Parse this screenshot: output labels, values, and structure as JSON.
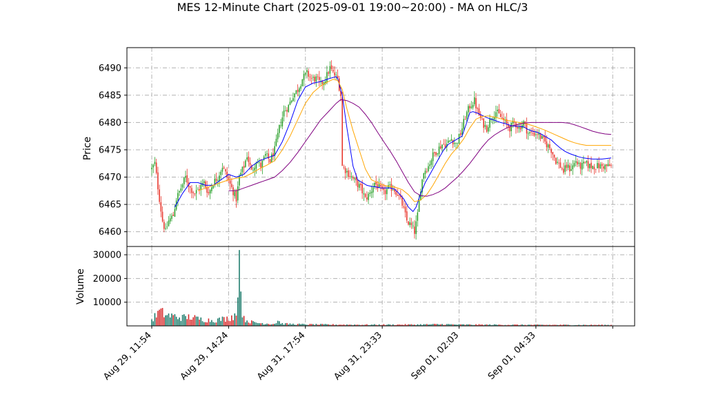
{
  "chart_data": {
    "type": "candlestick",
    "title": "MES 12-Minute Chart (2025-09-01 19:00~20:00) - MA on HLC/3",
    "price_panel": {
      "ylabel": "Price",
      "ylim": [
        6457.3,
        6493.7
      ],
      "yticks": [
        6460,
        6465,
        6470,
        6475,
        6480,
        6485,
        6490
      ],
      "grid": true
    },
    "volume_panel": {
      "ylabel": "Volume",
      "ylim": [
        0,
        33500
      ],
      "yticks": [
        10000,
        20000,
        30000
      ],
      "grid": true
    },
    "xticks": [
      "Aug 29, 11:54",
      "Aug 29, 14:24",
      "Aug 31, 17:54",
      "Aug 31, 23:33",
      "Sep 01, 02:03",
      "Sep 01, 04:33"
    ],
    "bar_count": 300,
    "price_path": [
      [
        0,
        6471.5
      ],
      [
        2,
        6472.5
      ],
      [
        5,
        6466
      ],
      [
        7,
        6462
      ],
      [
        9,
        6460
      ],
      [
        11,
        6462
      ],
      [
        14,
        6463
      ],
      [
        16,
        6466
      ],
      [
        19,
        6468
      ],
      [
        22,
        6470
      ],
      [
        25,
        6468
      ],
      [
        28,
        6467
      ],
      [
        31,
        6468
      ],
      [
        34,
        6469
      ],
      [
        37,
        6467
      ],
      [
        40,
        6469
      ],
      [
        43,
        6470
      ],
      [
        46,
        6472
      ],
      [
        49,
        6470
      ],
      [
        52,
        6468
      ],
      [
        55,
        6466
      ],
      [
        57,
        6470
      ],
      [
        60,
        6472
      ],
      [
        62,
        6474
      ],
      [
        65,
        6471
      ],
      [
        68,
        6473
      ],
      [
        71,
        6472
      ],
      [
        74,
        6474
      ],
      [
        77,
        6473
      ],
      [
        80,
        6475
      ],
      [
        83,
        6479
      ],
      [
        86,
        6482
      ],
      [
        89,
        6483
      ],
      [
        92,
        6485
      ],
      [
        95,
        6486
      ],
      [
        98,
        6488
      ],
      [
        101,
        6489
      ],
      [
        104,
        6488
      ],
      [
        107,
        6488
      ],
      [
        110,
        6487
      ],
      [
        113,
        6488
      ],
      [
        116,
        6490
      ],
      [
        118,
        6489
      ],
      [
        121,
        6488
      ],
      [
        123,
        6485
      ],
      [
        124,
        6472
      ],
      [
        127,
        6471
      ],
      [
        130,
        6470
      ],
      [
        133,
        6469
      ],
      [
        136,
        6468
      ],
      [
        139,
        6466
      ],
      [
        142,
        6467
      ],
      [
        145,
        6469
      ],
      [
        148,
        6468
      ],
      [
        151,
        6467
      ],
      [
        154,
        6468
      ],
      [
        157,
        6468
      ],
      [
        160,
        6467
      ],
      [
        163,
        6465
      ],
      [
        166,
        6462
      ],
      [
        169,
        6461
      ],
      [
        171,
        6460
      ],
      [
        173,
        6463
      ],
      [
        175,
        6468
      ],
      [
        177,
        6471
      ],
      [
        180,
        6472
      ],
      [
        183,
        6474
      ],
      [
        186,
        6475
      ],
      [
        189,
        6476
      ],
      [
        192,
        6476
      ],
      [
        195,
        6477
      ],
      [
        198,
        6476
      ],
      [
        201,
        6478
      ],
      [
        204,
        6481
      ],
      [
        207,
        6483
      ],
      [
        210,
        6484
      ],
      [
        212,
        6482
      ],
      [
        215,
        6480
      ],
      [
        218,
        6479
      ],
      [
        221,
        6481
      ],
      [
        224,
        6482
      ],
      [
        227,
        6481
      ],
      [
        230,
        6480
      ],
      [
        233,
        6479
      ],
      [
        236,
        6480
      ],
      [
        239,
        6479
      ],
      [
        242,
        6480
      ],
      [
        245,
        6478
      ],
      [
        248,
        6478
      ],
      [
        251,
        6478
      ],
      [
        254,
        6477
      ],
      [
        257,
        6476
      ],
      [
        260,
        6475
      ],
      [
        263,
        6473
      ],
      [
        266,
        6472
      ],
      [
        268,
        6471
      ],
      [
        270,
        6472
      ],
      [
        272,
        6471.5
      ],
      [
        274,
        6472
      ],
      [
        276,
        6473
      ],
      [
        278,
        6472
      ],
      [
        280,
        6472
      ],
      [
        282,
        6472.5
      ],
      [
        285,
        6472
      ],
      [
        288,
        6472
      ],
      [
        291,
        6472
      ],
      [
        294,
        6472
      ],
      [
        297,
        6472
      ],
      [
        299,
        6472
      ]
    ],
    "ma_series": [
      {
        "color": "#0000ff",
        "points": [
          [
            15,
            6464.5
          ],
          [
            20,
            6467
          ],
          [
            25,
            6469
          ],
          [
            30,
            6469
          ],
          [
            35,
            6468.5
          ],
          [
            40,
            6468.5
          ],
          [
            45,
            6469.5
          ],
          [
            50,
            6470.5
          ],
          [
            55,
            6470
          ],
          [
            60,
            6470.5
          ],
          [
            65,
            6472
          ],
          [
            70,
            6473
          ],
          [
            75,
            6473.5
          ],
          [
            80,
            6474
          ],
          [
            85,
            6476.5
          ],
          [
            90,
            6480
          ],
          [
            95,
            6484
          ],
          [
            100,
            6486.5
          ],
          [
            105,
            6487.2
          ],
          [
            110,
            6487.5
          ],
          [
            115,
            6488
          ],
          [
            120,
            6488.4
          ],
          [
            121,
            6488
          ],
          [
            124,
            6485
          ],
          [
            127,
            6479
          ],
          [
            131,
            6472
          ],
          [
            134,
            6469.5
          ],
          [
            137,
            6469
          ],
          [
            140,
            6468.5
          ],
          [
            143,
            6468.3
          ],
          [
            146,
            6468.2
          ],
          [
            149,
            6468
          ],
          [
            152,
            6468
          ],
          [
            155,
            6468
          ],
          [
            158,
            6467.8
          ],
          [
            161,
            6467
          ],
          [
            164,
            6466
          ],
          [
            167,
            6464.5
          ],
          [
            170,
            6463.7
          ],
          [
            172,
            6464.5
          ],
          [
            175,
            6467
          ],
          [
            178,
            6469
          ],
          [
            181,
            6470.5
          ],
          [
            184,
            6472
          ],
          [
            187,
            6473.5
          ],
          [
            190,
            6475
          ],
          [
            193,
            6476
          ],
          [
            196,
            6476.5
          ],
          [
            199,
            6477
          ],
          [
            202,
            6477.5
          ],
          [
            205,
            6480
          ],
          [
            207,
            6481.8
          ],
          [
            209,
            6482
          ],
          [
            212,
            6481.7
          ],
          [
            215,
            6481.3
          ],
          [
            218,
            6480.9
          ],
          [
            221,
            6480.6
          ],
          [
            224,
            6480.3
          ],
          [
            227,
            6480
          ],
          [
            230,
            6479.8
          ],
          [
            233,
            6479.5
          ],
          [
            236,
            6479.3
          ],
          [
            239,
            6479.3
          ],
          [
            242,
            6479.2
          ],
          [
            245,
            6478.7
          ],
          [
            248,
            6478.4
          ],
          [
            251,
            6478.2
          ],
          [
            254,
            6477.8
          ],
          [
            257,
            6477.3
          ],
          [
            260,
            6476.8
          ],
          [
            263,
            6476
          ],
          [
            266,
            6475.3
          ],
          [
            269,
            6474.7
          ],
          [
            272,
            6474.3
          ],
          [
            275,
            6474
          ],
          [
            278,
            6473.7
          ],
          [
            281,
            6473.5
          ],
          [
            284,
            6473.4
          ],
          [
            287,
            6473.3
          ],
          [
            290,
            6473.3
          ],
          [
            293,
            6473.3
          ],
          [
            296,
            6473.4
          ],
          [
            299,
            6473.5
          ]
        ]
      },
      {
        "color": "#ffa500",
        "points": [
          [
            30,
            6467.5
          ],
          [
            35,
            6468
          ],
          [
            40,
            6468.5
          ],
          [
            45,
            6469
          ],
          [
            50,
            6469.5
          ],
          [
            55,
            6469.8
          ],
          [
            60,
            6470
          ],
          [
            65,
            6470.7
          ],
          [
            70,
            6471.5
          ],
          [
            75,
            6472.2
          ],
          [
            80,
            6473
          ],
          [
            85,
            6475
          ],
          [
            90,
            6477.5
          ],
          [
            95,
            6480.5
          ],
          [
            100,
            6483.5
          ],
          [
            105,
            6485.5
          ],
          [
            110,
            6486.7
          ],
          [
            115,
            6487.5
          ],
          [
            118,
            6487.9
          ],
          [
            121,
            6487.7
          ],
          [
            124,
            6486
          ],
          [
            127,
            6482.5
          ],
          [
            131,
            6478.5
          ],
          [
            135,
            6475
          ],
          [
            139,
            6471.5
          ],
          [
            143,
            6469.5
          ],
          [
            147,
            6469
          ],
          [
            151,
            6468.5
          ],
          [
            155,
            6468.3
          ],
          [
            159,
            6468.1
          ],
          [
            163,
            6467.7
          ],
          [
            167,
            6466.8
          ],
          [
            171,
            6465.5
          ],
          [
            175,
            6465.8
          ],
          [
            179,
            6466.8
          ],
          [
            183,
            6468.5
          ],
          [
            187,
            6470.5
          ],
          [
            191,
            6472.5
          ],
          [
            195,
            6474.2
          ],
          [
            199,
            6475.5
          ],
          [
            203,
            6477
          ],
          [
            207,
            6479
          ],
          [
            211,
            6480.6
          ],
          [
            215,
            6481.1
          ],
          [
            219,
            6481.2
          ],
          [
            223,
            6481
          ],
          [
            227,
            6480.7
          ],
          [
            231,
            6480.4
          ],
          [
            235,
            6480.2
          ],
          [
            239,
            6480
          ],
          [
            243,
            6479.8
          ],
          [
            247,
            6479.5
          ],
          [
            251,
            6479.1
          ],
          [
            255,
            6478.7
          ],
          [
            259,
            6478.2
          ],
          [
            263,
            6477.7
          ],
          [
            267,
            6477.2
          ],
          [
            271,
            6476.7
          ],
          [
            275,
            6476.3
          ],
          [
            279,
            6476
          ],
          [
            283,
            6475.8
          ],
          [
            287,
            6475.8
          ],
          [
            291,
            6475.8
          ],
          [
            295,
            6475.8
          ],
          [
            299,
            6475.8
          ]
        ]
      },
      {
        "color": "#800080",
        "points": [
          [
            50,
            6467.5
          ],
          [
            55,
            6467.5
          ],
          [
            60,
            6468
          ],
          [
            65,
            6468.5
          ],
          [
            70,
            6469
          ],
          [
            75,
            6469.5
          ],
          [
            80,
            6470
          ],
          [
            85,
            6471.2
          ],
          [
            90,
            6472.7
          ],
          [
            95,
            6474.5
          ],
          [
            100,
            6476.5
          ],
          [
            105,
            6478.5
          ],
          [
            110,
            6480.5
          ],
          [
            115,
            6482
          ],
          [
            120,
            6483.5
          ],
          [
            123,
            6484.2
          ],
          [
            127,
            6484
          ],
          [
            131,
            6483.5
          ],
          [
            135,
            6482.8
          ],
          [
            139,
            6481.5
          ],
          [
            143,
            6480
          ],
          [
            147,
            6478.2
          ],
          [
            151,
            6476.5
          ],
          [
            155,
            6474.8
          ],
          [
            159,
            6473
          ],
          [
            163,
            6471
          ],
          [
            167,
            6469
          ],
          [
            171,
            6467.3
          ],
          [
            175,
            6466.6
          ],
          [
            179,
            6466.5
          ],
          [
            183,
            6466.8
          ],
          [
            187,
            6467.3
          ],
          [
            191,
            6468
          ],
          [
            195,
            6469
          ],
          [
            199,
            6470
          ],
          [
            203,
            6471.2
          ],
          [
            207,
            6472.5
          ],
          [
            211,
            6474
          ],
          [
            215,
            6475.5
          ],
          [
            219,
            6476.8
          ],
          [
            223,
            6477.7
          ],
          [
            227,
            6478.4
          ],
          [
            231,
            6479
          ],
          [
            235,
            6479.4
          ],
          [
            239,
            6479.7
          ],
          [
            243,
            6479.9
          ],
          [
            247,
            6480
          ],
          [
            251,
            6480
          ],
          [
            255,
            6480
          ],
          [
            259,
            6480
          ],
          [
            263,
            6480
          ],
          [
            267,
            6480
          ],
          [
            271,
            6479.9
          ],
          [
            275,
            6479.6
          ],
          [
            279,
            6479.2
          ],
          [
            283,
            6478.8
          ],
          [
            287,
            6478.4
          ],
          [
            291,
            6478.1
          ],
          [
            295,
            6477.9
          ],
          [
            299,
            6477.8
          ]
        ]
      }
    ],
    "volume_profile": [
      [
        0,
        2500
      ],
      [
        5,
        6000
      ],
      [
        10,
        4500
      ],
      [
        15,
        4000
      ],
      [
        20,
        3500
      ],
      [
        25,
        3800
      ],
      [
        30,
        3000
      ],
      [
        35,
        2600
      ],
      [
        40,
        2300
      ],
      [
        45,
        2800
      ],
      [
        50,
        3200
      ],
      [
        55,
        5000
      ],
      [
        56,
        12000
      ],
      [
        57,
        32000
      ],
      [
        58,
        14500
      ],
      [
        59,
        6000
      ],
      [
        60,
        3000
      ],
      [
        63,
        2000
      ],
      [
        66,
        1500
      ],
      [
        70,
        1200
      ],
      [
        75,
        1000
      ],
      [
        80,
        900
      ],
      [
        82,
        2200
      ],
      [
        85,
        900
      ],
      [
        90,
        800
      ],
      [
        95,
        700
      ],
      [
        100,
        650
      ],
      [
        110,
        600
      ],
      [
        120,
        550
      ],
      [
        140,
        500
      ],
      [
        170,
        550
      ],
      [
        190,
        700
      ],
      [
        200,
        550
      ],
      [
        220,
        500
      ],
      [
        240,
        450
      ],
      [
        260,
        430
      ],
      [
        280,
        400
      ],
      [
        299,
        400
      ]
    ],
    "colors": {
      "up": "#2ca02c",
      "down": "#e8342a",
      "vol_up": "#1a7a6a",
      "vol_down": "#d62728"
    }
  }
}
